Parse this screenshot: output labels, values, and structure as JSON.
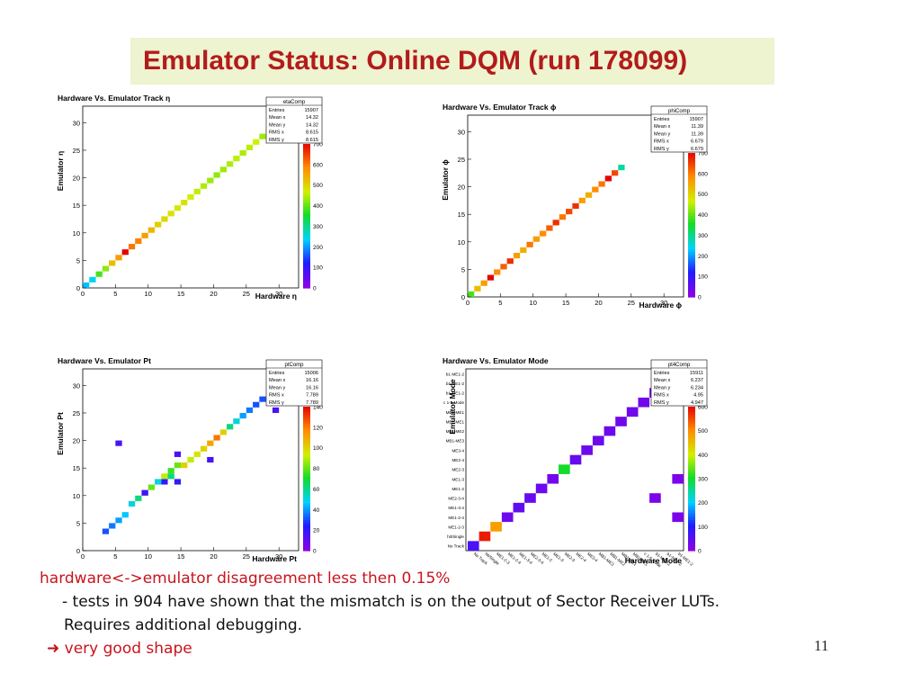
{
  "slide": {
    "title": "Emulator Status: Online DQM (run 178099)",
    "page_number": "11",
    "notes": {
      "line1": "hardware<->emulator disagreement less then 0.15%",
      "line2": "- tests in 904 have shown that the mismatch is on the output of Sector Receiver LUTs.",
      "line3": "Requires additional debugging.",
      "line4": "very good shape"
    },
    "colors": {
      "title": "#b31b1b",
      "title_bg": "#eef3d0",
      "red_text": "#c8141e"
    }
  },
  "chart_data": [
    {
      "type": "heatmap",
      "title": "Hardware Vs. Emulator Track η",
      "xlabel": "Hardware η",
      "ylabel": "Emulator η",
      "xlim": [
        0,
        33
      ],
      "ylim": [
        0,
        33
      ],
      "xticks": [
        0,
        5,
        10,
        15,
        20,
        25,
        30
      ],
      "yticks": [
        0,
        5,
        10,
        15,
        20,
        25,
        30
      ],
      "zlim": [
        0,
        700
      ],
      "zticks": [
        0,
        100,
        200,
        300,
        400,
        500,
        600,
        700
      ],
      "stats": {
        "name": "etaComp",
        "rows": [
          [
            "Entries",
            "15907"
          ],
          [
            "Mean x",
            "14.32"
          ],
          [
            "Mean y",
            "14.32"
          ],
          [
            "RMS x",
            "8.615"
          ],
          [
            "RMS y",
            "8.615"
          ]
        ]
      },
      "cells": [
        [
          0,
          0,
          220
        ],
        [
          1,
          1,
          240
        ],
        [
          2,
          2,
          380
        ],
        [
          3,
          3,
          420
        ],
        [
          4,
          4,
          520
        ],
        [
          5,
          5,
          560
        ],
        [
          6,
          6,
          700
        ],
        [
          7,
          7,
          600
        ],
        [
          8,
          8,
          590
        ],
        [
          9,
          9,
          560
        ],
        [
          10,
          10,
          530
        ],
        [
          11,
          11,
          500
        ],
        [
          12,
          12,
          490
        ],
        [
          13,
          13,
          480
        ],
        [
          14,
          14,
          470
        ],
        [
          15,
          15,
          480
        ],
        [
          16,
          16,
          460
        ],
        [
          17,
          17,
          450
        ],
        [
          18,
          18,
          440
        ],
        [
          19,
          19,
          430
        ],
        [
          20,
          20,
          420
        ],
        [
          21,
          21,
          430
        ],
        [
          22,
          22,
          440
        ],
        [
          23,
          23,
          450
        ],
        [
          24,
          24,
          440
        ],
        [
          25,
          25,
          450
        ],
        [
          26,
          26,
          460
        ],
        [
          27,
          27,
          430
        ],
        [
          28,
          28,
          420
        ]
      ]
    },
    {
      "type": "heatmap",
      "title": "Hardware Vs. Emulator Track ϕ",
      "xlabel": "Hardware ϕ",
      "ylabel": "Emulator ϕ",
      "xlim": [
        0,
        33
      ],
      "ylim": [
        0,
        33
      ],
      "xticks": [
        0,
        5,
        10,
        15,
        20,
        25,
        30
      ],
      "yticks": [
        0,
        5,
        10,
        15,
        20,
        25,
        30
      ],
      "zlim": [
        0,
        700
      ],
      "zticks": [
        0,
        100,
        200,
        300,
        400,
        500,
        600,
        700
      ],
      "stats": {
        "name": "phiComp",
        "rows": [
          [
            "Entries",
            "15907"
          ],
          [
            "Mean x",
            "11.39"
          ],
          [
            "Mean y",
            "11.39"
          ],
          [
            "RMS x",
            "6.679"
          ],
          [
            "RMS y",
            "6.679"
          ]
        ]
      },
      "cells": [
        [
          0,
          0,
          380
        ],
        [
          1,
          1,
          520
        ],
        [
          2,
          2,
          560
        ],
        [
          3,
          3,
          700
        ],
        [
          4,
          4,
          580
        ],
        [
          5,
          5,
          620
        ],
        [
          6,
          6,
          660
        ],
        [
          7,
          7,
          560
        ],
        [
          8,
          8,
          540
        ],
        [
          9,
          9,
          600
        ],
        [
          10,
          10,
          560
        ],
        [
          11,
          11,
          580
        ],
        [
          12,
          12,
          620
        ],
        [
          13,
          13,
          660
        ],
        [
          14,
          14,
          600
        ],
        [
          15,
          15,
          640
        ],
        [
          16,
          16,
          660
        ],
        [
          17,
          17,
          560
        ],
        [
          18,
          18,
          540
        ],
        [
          19,
          19,
          580
        ],
        [
          20,
          20,
          600
        ],
        [
          21,
          21,
          700
        ],
        [
          22,
          22,
          640
        ],
        [
          23,
          23,
          280
        ]
      ]
    },
    {
      "type": "heatmap",
      "title": "Hardware Vs. Emulator Pt",
      "xlabel": "Hardware Pt",
      "ylabel": "Emulator Pt",
      "xlim": [
        0,
        33
      ],
      "ylim": [
        0,
        33
      ],
      "xticks": [
        0,
        5,
        10,
        15,
        20,
        25,
        30
      ],
      "yticks": [
        0,
        5,
        10,
        15,
        20,
        25,
        30
      ],
      "zlim": [
        0,
        140
      ],
      "zticks": [
        0,
        20,
        40,
        60,
        80,
        100,
        120,
        140
      ],
      "stats": {
        "name": "ptComp",
        "rows": [
          [
            "Entries",
            "15006"
          ],
          [
            "Mean x",
            "16.16"
          ],
          [
            "Mean y",
            "16.16"
          ],
          [
            "RMS x",
            "7.789"
          ],
          [
            "RMS y",
            "7.789"
          ]
        ]
      },
      "cells": [
        [
          3,
          3,
          30
        ],
        [
          4,
          4,
          35
        ],
        [
          5,
          5,
          40
        ],
        [
          6,
          6,
          45
        ],
        [
          7,
          8,
          50
        ],
        [
          8,
          9,
          60
        ],
        [
          9,
          10,
          70
        ],
        [
          10,
          11,
          80
        ],
        [
          11,
          12,
          50
        ],
        [
          12,
          12,
          20
        ],
        [
          12,
          13,
          90
        ],
        [
          13,
          13,
          60
        ],
        [
          13,
          14,
          75
        ],
        [
          14,
          12,
          20
        ],
        [
          14,
          15,
          80
        ],
        [
          15,
          15,
          100
        ],
        [
          16,
          16,
          90
        ],
        [
          17,
          17,
          95
        ],
        [
          18,
          18,
          100
        ],
        [
          19,
          19,
          110
        ],
        [
          20,
          20,
          120
        ],
        [
          21,
          21,
          100
        ],
        [
          22,
          22,
          60
        ],
        [
          23,
          23,
          50
        ],
        [
          24,
          24,
          40
        ],
        [
          25,
          25,
          35
        ],
        [
          26,
          26,
          30
        ],
        [
          27,
          27,
          30
        ],
        [
          9,
          10,
          15
        ],
        [
          14,
          17,
          15
        ],
        [
          19,
          16,
          15
        ],
        [
          5,
          19,
          15
        ],
        [
          29,
          25,
          15
        ]
      ]
    },
    {
      "type": "heatmap",
      "title": "Hardware Vs. Emulator Mode",
      "xlabel": "Hardware Mode",
      "ylabel": "Emulator Mode",
      "zlim": [
        0,
        600
      ],
      "zticks": [
        0,
        100,
        200,
        300,
        400,
        500,
        600
      ],
      "stats": {
        "name": "pt4Comp",
        "rows": [
          [
            "Entries",
            "15911"
          ],
          [
            "Mean x",
            "6.237"
          ],
          [
            "Mean y",
            "6.234"
          ],
          [
            "RMS x",
            "4.95"
          ],
          [
            "RMS y",
            "4.947"
          ]
        ]
      },
      "ycategories": [
        "No Track",
        "hit/Single",
        "ME1-2-3",
        "ME1-2-4",
        "ME1-3-4",
        "ME2-3-4",
        "ME1-2",
        "ME1-3",
        "ME2-3",
        "ME2-4",
        "ME3-4",
        "MB1-ME3",
        "MB1-ME2",
        "MB1-ME1",
        "MB1-ME1",
        "c 1-5 Mode",
        "b1-ME1-2",
        "b1-ME1-2",
        "b1-ME1-2"
      ],
      "cells": [
        [
          0,
          0,
          60
        ],
        [
          1,
          1,
          580
        ],
        [
          2,
          2,
          480
        ],
        [
          3,
          3,
          30
        ],
        [
          4,
          4,
          40
        ],
        [
          5,
          5,
          35
        ],
        [
          6,
          6,
          30
        ],
        [
          7,
          7,
          25
        ],
        [
          8,
          8,
          300
        ],
        [
          9,
          9,
          35
        ],
        [
          10,
          10,
          30
        ],
        [
          11,
          11,
          30
        ],
        [
          12,
          12,
          30
        ],
        [
          13,
          13,
          25
        ],
        [
          14,
          14,
          25
        ],
        [
          15,
          15,
          25
        ],
        [
          16,
          16,
          20
        ],
        [
          17,
          17,
          20
        ],
        [
          18,
          18,
          15
        ],
        [
          16,
          5,
          15
        ],
        [
          18,
          7,
          15
        ],
        [
          18,
          3,
          15
        ]
      ]
    }
  ]
}
